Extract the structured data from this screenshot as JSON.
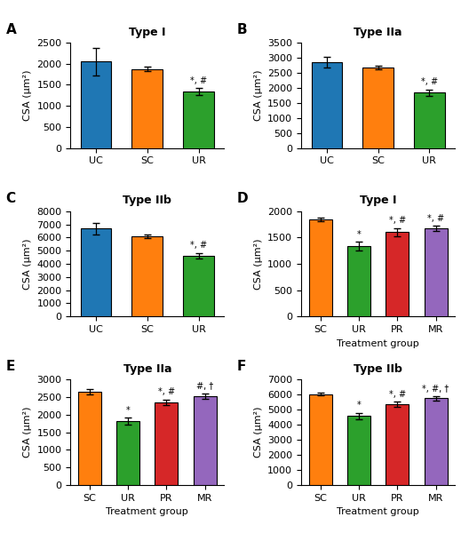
{
  "chart_data": [
    {
      "type": "bar",
      "label": "A",
      "title": "Type I",
      "categories": [
        "UC",
        "SC",
        "UR"
      ],
      "values": [
        2050,
        1870,
        1340
      ],
      "errors": [
        320,
        55,
        80
      ],
      "colors": [
        "#1f77b4",
        "#ff7f0e",
        "#2ca02c"
      ],
      "ylim": [
        0,
        2500
      ],
      "yticks": [
        0,
        500,
        1000,
        1500,
        2000,
        2500
      ],
      "ylabel": "CSA (μm²)",
      "annotations": [
        {
          "bar": 2,
          "text": "*, #"
        }
      ]
    },
    {
      "type": "bar",
      "label": "B",
      "title": "Type IIa",
      "categories": [
        "UC",
        "SC",
        "UR"
      ],
      "values": [
        2840,
        2680,
        1840
      ],
      "errors": [
        175,
        65,
        110
      ],
      "colors": [
        "#1f77b4",
        "#ff7f0e",
        "#2ca02c"
      ],
      "ylim": [
        0,
        3500
      ],
      "yticks": [
        0,
        500,
        1000,
        1500,
        2000,
        2500,
        3000,
        3500
      ],
      "ylabel": "CSA (μm²)",
      "annotations": [
        {
          "bar": 2,
          "text": "*, #"
        }
      ]
    },
    {
      "type": "bar",
      "label": "C",
      "title": "Type IIb",
      "categories": [
        "UC",
        "SC",
        "UR"
      ],
      "values": [
        6680,
        6090,
        4600
      ],
      "errors": [
        430,
        120,
        220
      ],
      "colors": [
        "#1f77b4",
        "#ff7f0e",
        "#2ca02c"
      ],
      "ylim": [
        0,
        8000
      ],
      "yticks": [
        0,
        1000,
        2000,
        3000,
        4000,
        5000,
        6000,
        7000,
        8000
      ],
      "ylabel": "CSA (μm²)",
      "annotations": [
        {
          "bar": 2,
          "text": "*, #"
        }
      ]
    },
    {
      "type": "bar",
      "label": "D",
      "title": "Type I",
      "categories": [
        "SC",
        "UR",
        "PR",
        "MR"
      ],
      "values": [
        1840,
        1340,
        1600,
        1670
      ],
      "errors": [
        30,
        80,
        75,
        50
      ],
      "colors": [
        "#ff7f0e",
        "#2ca02c",
        "#d62728",
        "#9467bd"
      ],
      "ylim": [
        0,
        2000
      ],
      "yticks": [
        0,
        500,
        1000,
        1500,
        2000
      ],
      "ylabel": "CSA (μm²)",
      "xlabel": "Treatment group",
      "annotations": [
        {
          "bar": 1,
          "text": "*"
        },
        {
          "bar": 2,
          "text": "*, #"
        },
        {
          "bar": 3,
          "text": "*, #"
        }
      ]
    },
    {
      "type": "bar",
      "label": "E",
      "title": "Type IIa",
      "categories": [
        "SC",
        "UR",
        "PR",
        "MR"
      ],
      "values": [
        2650,
        1820,
        2350,
        2530
      ],
      "errors": [
        75,
        100,
        80,
        70
      ],
      "colors": [
        "#ff7f0e",
        "#2ca02c",
        "#d62728",
        "#9467bd"
      ],
      "ylim": [
        0,
        3000
      ],
      "yticks": [
        0,
        500,
        1000,
        1500,
        2000,
        2500,
        3000
      ],
      "ylabel": "CSA (μm²)",
      "xlabel": "Treatment group",
      "annotations": [
        {
          "bar": 1,
          "text": "*"
        },
        {
          "bar": 2,
          "text": "*, #"
        },
        {
          "bar": 3,
          "text": "#, †"
        }
      ]
    },
    {
      "type": "bar",
      "label": "F",
      "title": "Type IIb",
      "categories": [
        "SC",
        "UR",
        "PR",
        "MR"
      ],
      "values": [
        6050,
        4580,
        5380,
        5760
      ],
      "errors": [
        100,
        200,
        160,
        140
      ],
      "colors": [
        "#ff7f0e",
        "#2ca02c",
        "#d62728",
        "#9467bd"
      ],
      "ylim": [
        0,
        7000
      ],
      "yticks": [
        0,
        1000,
        2000,
        3000,
        4000,
        5000,
        6000,
        7000
      ],
      "ylabel": "CSA (μm²)",
      "xlabel": "Treatment group",
      "annotations": [
        {
          "bar": 1,
          "text": "*"
        },
        {
          "bar": 2,
          "text": "*, #"
        },
        {
          "bar": 3,
          "text": "*, #, †"
        }
      ]
    }
  ]
}
